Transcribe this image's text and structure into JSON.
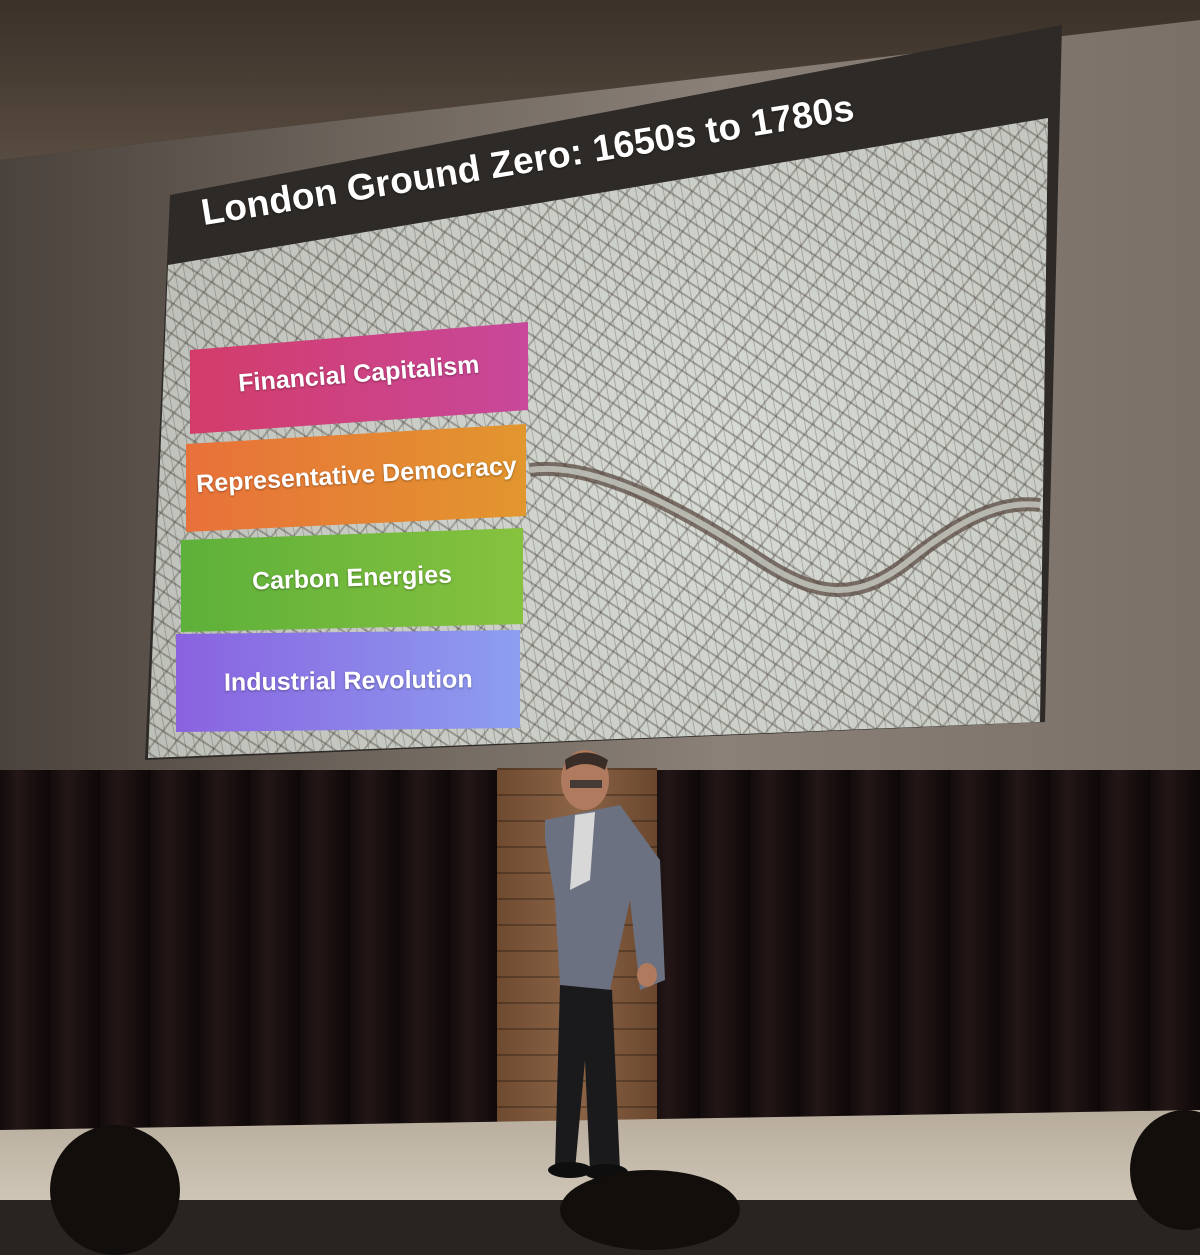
{
  "slide": {
    "title": "London Ground Zero: 1650s to 1780s",
    "items": [
      {
        "label": "Financial Capitalism",
        "color": "#d33c6a"
      },
      {
        "label": "Representative Democracy",
        "color": "#e8713a"
      },
      {
        "label": "Carbon Energies",
        "color": "#5db03a"
      },
      {
        "label": "Industrial Revolution",
        "color": "#8a62e0"
      }
    ]
  },
  "scene": {
    "background_map": "historic London street map with river",
    "speaker": "presenter in grey suit on stage"
  }
}
